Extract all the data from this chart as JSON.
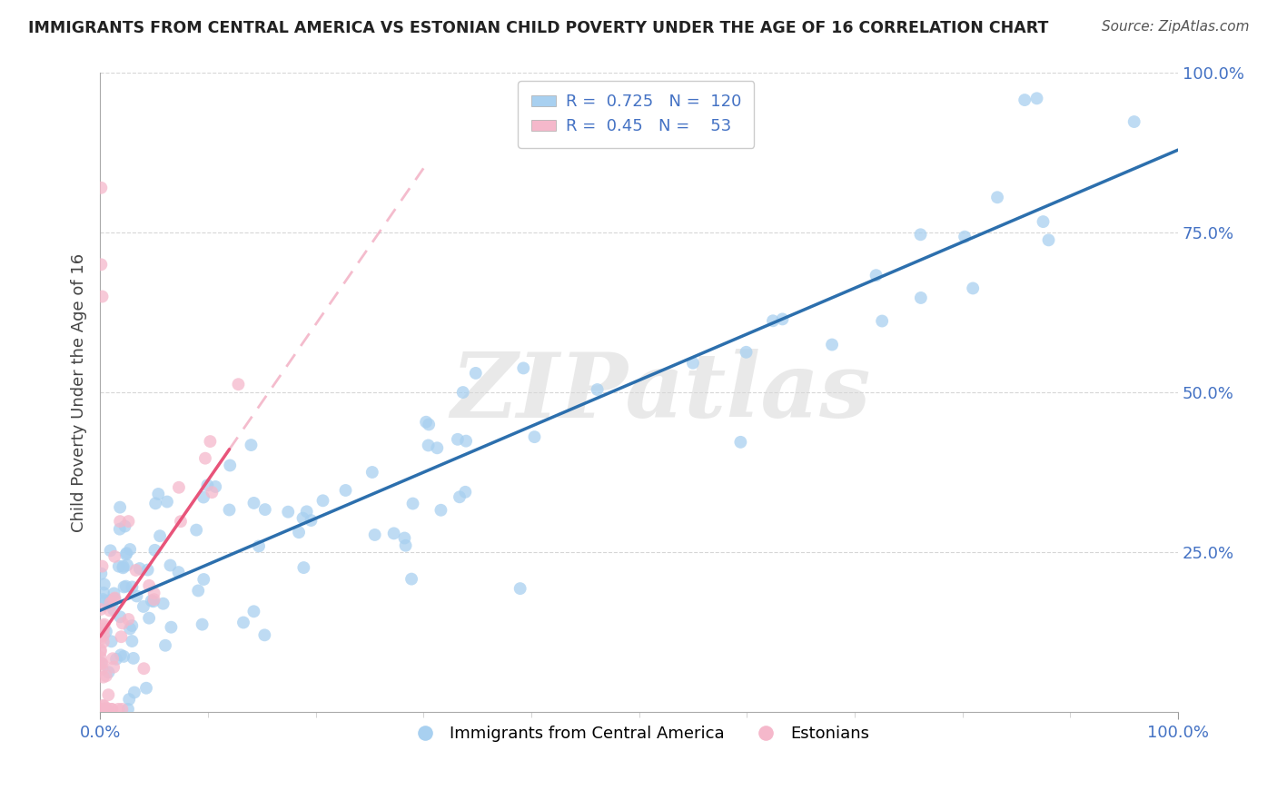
{
  "title": "IMMIGRANTS FROM CENTRAL AMERICA VS ESTONIAN CHILD POVERTY UNDER THE AGE OF 16 CORRELATION CHART",
  "source": "Source: ZipAtlas.com",
  "ylabel": "Child Poverty Under the Age of 16",
  "watermark": "ZIPatlas",
  "blue_R": 0.725,
  "blue_N": 120,
  "pink_R": 0.45,
  "pink_N": 53,
  "blue_color": "#a8d0f0",
  "pink_color": "#f5b8cb",
  "blue_line_color": "#2c6fad",
  "pink_line_color": "#e8547a",
  "pink_dash_color": "#f0a0b8",
  "legend_blue_label": "Immigrants from Central America",
  "legend_pink_label": "Estonians",
  "xlim": [
    0.0,
    1.0
  ],
  "ylim": [
    0.0,
    1.0
  ],
  "ytick_positions": [
    0.25,
    0.5,
    0.75,
    1.0
  ],
  "ytick_labels": [
    "25.0%",
    "50.0%",
    "75.0%",
    "100.0%"
  ],
  "xtick_positions": [
    0.0,
    1.0
  ],
  "xtick_labels": [
    "0.0%",
    "100.0%"
  ],
  "background_color": "#ffffff",
  "grid_color": "#cccccc",
  "title_color": "#222222",
  "source_color": "#555555",
  "tick_color": "#4472c4"
}
